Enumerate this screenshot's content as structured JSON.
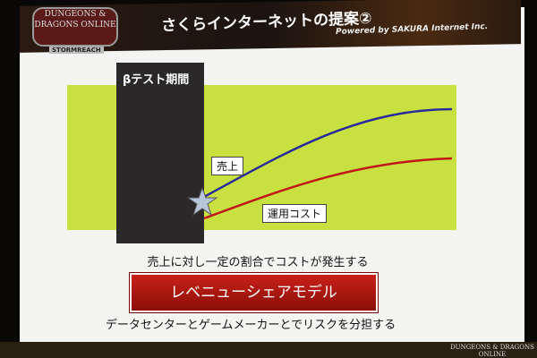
{
  "header": {
    "title": "さくらインターネットの提案②",
    "powered": "Powered by SAKURA Internet Inc.",
    "logo": "DUNGEONS & DRAGONS ONLINE",
    "logo_sub": "STORMREACH"
  },
  "diagram": {
    "beta_label": "βテスト期間",
    "revenue_label": "売上",
    "cost_label": "運用コスト",
    "colors": {
      "background": "#c8e040",
      "beta": "#2a2828",
      "revenue": "#2a2a9a",
      "cost": "#c01818",
      "star": "#b8c4d8"
    }
  },
  "caption": "売上に対し一定の割合でコストが発生する",
  "button_label": "レベニューシェアモデル",
  "footer_text": "データセンターとゲームメーカーとでリスクを分担する",
  "bottom_logo": "DUNGEONS & DRAGONS ONLINE"
}
